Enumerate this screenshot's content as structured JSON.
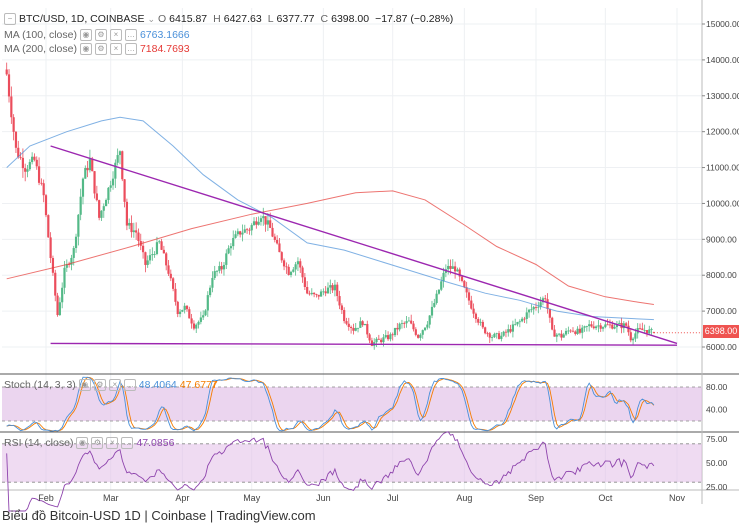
{
  "header": {
    "symbol": "BTC/USD, 1D, COINBASE",
    "open_label": "O",
    "open": "6415.87",
    "high_label": "H",
    "high": "6427.63",
    "low_label": "L",
    "low": "6377.77",
    "close_label": "C",
    "close": "6398.00",
    "change": "−17.87 (−0.28%)"
  },
  "indicators": {
    "ma100": {
      "label": "MA (100, close)",
      "value": "6763.1666",
      "color": "#4a90d9"
    },
    "ma200": {
      "label": "MA (200, close)",
      "value": "7184.7693",
      "color": "#e53935"
    },
    "stoch": {
      "label": "Stoch (14, 3, 3)",
      "k": "48.4064",
      "d": "47.6777",
      "k_color": "#4a90d9",
      "d_color": "#f57c00"
    },
    "rsi": {
      "label": "RSI (14, close)",
      "value": "47.0856",
      "color": "#8e44ad"
    }
  },
  "price_tag": "6398.00",
  "caption": "Biểu đồ Bitcoin-USD 1D | Coinbase | TradingView.com",
  "colors": {
    "up": "#53b987",
    "down": "#eb4d5c",
    "trendline": "#9c27b0",
    "band": "#e1bee7"
  },
  "chart_data": [
    {
      "type": "candlestick",
      "x_axis": {
        "type": "date",
        "ticks": [
          "Feb",
          "Mar",
          "Apr",
          "May",
          "Jun",
          "Jul",
          "Aug",
          "Sep",
          "Oct",
          "Nov"
        ]
      },
      "y_axis": {
        "ticks": [
          6000,
          7000,
          8000,
          9000,
          10000,
          11000,
          12000,
          13000,
          14000,
          15000
        ],
        "ylim": [
          5800,
          15300
        ],
        "tick_format": "0.00"
      },
      "close_path": [
        [
          "2018-01-15",
          13600
        ],
        [
          "2018-01-19",
          11500
        ],
        [
          "2018-01-23",
          11000
        ],
        [
          "2018-01-27",
          11200
        ],
        [
          "2018-01-31",
          10200
        ],
        [
          "2018-02-03",
          8500
        ],
        [
          "2018-02-06",
          6900
        ],
        [
          "2018-02-09",
          8100
        ],
        [
          "2018-02-13",
          8700
        ],
        [
          "2018-02-17",
          10700
        ],
        [
          "2018-02-20",
          11200
        ],
        [
          "2018-02-24",
          9600
        ],
        [
          "2018-02-28",
          10400
        ],
        [
          "2018-03-05",
          11500
        ],
        [
          "2018-03-08",
          9400
        ],
        [
          "2018-03-12",
          9200
        ],
        [
          "2018-03-16",
          8300
        ],
        [
          "2018-03-19",
          8600
        ],
        [
          "2018-03-22",
          8900
        ],
        [
          "2018-03-26",
          8100
        ],
        [
          "2018-03-30",
          7000
        ],
        [
          "2018-04-02",
          7100
        ],
        [
          "2018-04-06",
          6600
        ],
        [
          "2018-04-10",
          6800
        ],
        [
          "2018-04-14",
          8000
        ],
        [
          "2018-04-18",
          8200
        ],
        [
          "2018-04-22",
          8900
        ],
        [
          "2018-04-26",
          9200
        ],
        [
          "2018-04-30",
          9300
        ],
        [
          "2018-05-05",
          9700
        ],
        [
          "2018-05-09",
          9300
        ],
        [
          "2018-05-13",
          8600
        ],
        [
          "2018-05-17",
          8100
        ],
        [
          "2018-05-21",
          8400
        ],
        [
          "2018-05-25",
          7500
        ],
        [
          "2018-05-29",
          7400
        ],
        [
          "2018-06-02",
          7600
        ],
        [
          "2018-06-06",
          7650
        ],
        [
          "2018-06-10",
          6800
        ],
        [
          "2018-06-14",
          6500
        ],
        [
          "2018-06-18",
          6700
        ],
        [
          "2018-06-22",
          6100
        ],
        [
          "2018-06-26",
          6200
        ],
        [
          "2018-06-30",
          6300
        ],
        [
          "2018-07-04",
          6600
        ],
        [
          "2018-07-08",
          6700
        ],
        [
          "2018-07-12",
          6300
        ],
        [
          "2018-07-16",
          6700
        ],
        [
          "2018-07-20",
          7400
        ],
        [
          "2018-07-24",
          8200
        ],
        [
          "2018-07-28",
          8200
        ],
        [
          "2018-08-01",
          7600
        ],
        [
          "2018-08-05",
          7000
        ],
        [
          "2018-08-09",
          6500
        ],
        [
          "2018-08-13",
          6300
        ],
        [
          "2018-08-17",
          6300
        ],
        [
          "2018-08-21",
          6500
        ],
        [
          "2018-08-25",
          6700
        ],
        [
          "2018-08-29",
          7000
        ],
        [
          "2018-09-02",
          7200
        ],
        [
          "2018-09-05",
          7400
        ],
        [
          "2018-09-08",
          6400
        ],
        [
          "2018-09-12",
          6300
        ],
        [
          "2018-09-16",
          6500
        ],
        [
          "2018-09-20",
          6400
        ],
        [
          "2018-09-24",
          6600
        ],
        [
          "2018-09-28",
          6600
        ],
        [
          "2018-10-02",
          6600
        ],
        [
          "2018-10-06",
          6600
        ],
        [
          "2018-10-10",
          6600
        ],
        [
          "2018-10-12",
          6250
        ],
        [
          "2018-10-15",
          6450
        ],
        [
          "2018-10-18",
          6480
        ],
        [
          "2018-10-22",
          6398
        ]
      ],
      "ma100": [
        [
          "2018-01-15",
          11000
        ],
        [
          "2018-01-25",
          11600
        ],
        [
          "2018-02-10",
          12000
        ],
        [
          "2018-02-25",
          12300
        ],
        [
          "2018-03-05",
          12400
        ],
        [
          "2018-03-15",
          12300
        ],
        [
          "2018-03-28",
          11600
        ],
        [
          "2018-04-10",
          10800
        ],
        [
          "2018-04-25",
          10100
        ],
        [
          "2018-05-10",
          9600
        ],
        [
          "2018-05-25",
          8900
        ],
        [
          "2018-06-10",
          8700
        ],
        [
          "2018-06-25",
          8400
        ],
        [
          "2018-07-10",
          8100
        ],
        [
          "2018-07-25",
          7800
        ],
        [
          "2018-08-10",
          7500
        ],
        [
          "2018-08-25",
          7300
        ],
        [
          "2018-09-10",
          7000
        ],
        [
          "2018-09-25",
          6850
        ],
        [
          "2018-10-10",
          6800
        ],
        [
          "2018-10-22",
          6763
        ]
      ],
      "ma200": [
        [
          "2018-01-15",
          7900
        ],
        [
          "2018-02-10",
          8300
        ],
        [
          "2018-03-10",
          8800
        ],
        [
          "2018-04-05",
          9300
        ],
        [
          "2018-05-01",
          9700
        ],
        [
          "2018-05-25",
          10000
        ],
        [
          "2018-06-15",
          10300
        ],
        [
          "2018-07-01",
          10350
        ],
        [
          "2018-07-15",
          10100
        ],
        [
          "2018-08-01",
          9400
        ],
        [
          "2018-08-15",
          8800
        ],
        [
          "2018-09-01",
          8300
        ],
        [
          "2018-09-15",
          7700
        ],
        [
          "2018-10-01",
          7400
        ],
        [
          "2018-10-15",
          7250
        ],
        [
          "2018-10-22",
          7185
        ]
      ],
      "trendlines": [
        {
          "name": "upper",
          "points": [
            [
              "2018-02-03",
              11600
            ],
            [
              "2018-11-01",
              6100
            ]
          ]
        },
        {
          "name": "lower",
          "points": [
            [
              "2018-02-03",
              6100
            ],
            [
              "2018-11-01",
              6050
            ]
          ]
        }
      ],
      "last_price": 6398.0
    },
    {
      "type": "line",
      "name": "Stochastic",
      "y_axis": {
        "ticks": [
          40,
          80
        ],
        "ylim": [
          0,
          100
        ],
        "band": [
          20,
          80
        ],
        "tick_format": "0.00"
      },
      "k_last": 48.4064,
      "d_last": 47.6777
    },
    {
      "type": "line",
      "name": "RSI",
      "y_axis": {
        "ticks": [
          25,
          50,
          75
        ],
        "ylim": [
          22,
          78
        ],
        "band": [
          30,
          70
        ],
        "tick_format": "0.00"
      },
      "last": 47.0856
    }
  ]
}
